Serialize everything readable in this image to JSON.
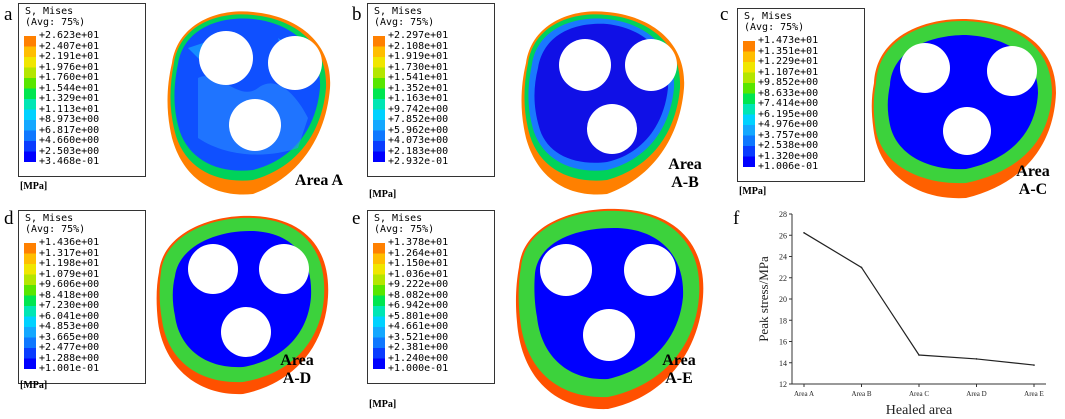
{
  "colors": {
    "scale": [
      "#0000ff",
      "#0a3cff",
      "#0f78ff",
      "#14a8ff",
      "#00d2ff",
      "#00e6b4",
      "#00e650",
      "#58e600",
      "#b4e600",
      "#f0e600",
      "#ffbe00",
      "#ff8000",
      "#ff2000"
    ],
    "model_blue": "#1a1ae6",
    "ring_green": "#2ecc40"
  },
  "legend_title": [
    "S, Mises",
    "(Avg: 75%)"
  ],
  "unit": "[MPa]",
  "panels": [
    {
      "label": "a",
      "area": [
        "Area A"
      ],
      "values": [
        "+2.623e+01",
        "+2.407e+01",
        "+2.191e+01",
        "+1.976e+01",
        "+1.760e+01",
        "+1.544e+01",
        "+1.329e+01",
        "+1.113e+01",
        "+8.973e+00",
        "+6.817e+00",
        "+4.660e+00",
        "+2.503e+00",
        "+3.468e-01"
      ]
    },
    {
      "label": "b",
      "area": [
        "Area",
        "A-B"
      ],
      "values": [
        "+2.297e+01",
        "+2.108e+01",
        "+1.919e+01",
        "+1.730e+01",
        "+1.541e+01",
        "+1.352e+01",
        "+1.163e+01",
        "+9.742e+00",
        "+7.852e+00",
        "+5.962e+00",
        "+4.073e+00",
        "+2.183e+00",
        "+2.932e-01"
      ]
    },
    {
      "label": "c",
      "area": [
        "Area",
        "A-C"
      ],
      "values": [
        "+1.473e+01",
        "+1.351e+01",
        "+1.229e+01",
        "+1.107e+01",
        "+9.852e+00",
        "+8.633e+00",
        "+7.414e+00",
        "+6.195e+00",
        "+4.976e+00",
        "+3.757e+00",
        "+2.538e+00",
        "+1.320e+00",
        "+1.006e-01"
      ]
    },
    {
      "label": "d",
      "area": [
        "Area",
        "A-D"
      ],
      "values": [
        "+1.436e+01",
        "+1.317e+01",
        "+1.198e+01",
        "+1.079e+01",
        "+9.606e+00",
        "+8.418e+00",
        "+7.230e+00",
        "+6.041e+00",
        "+4.853e+00",
        "+3.665e+00",
        "+2.477e+00",
        "+1.288e+00",
        "+1.001e-01"
      ]
    },
    {
      "label": "e",
      "area": [
        "Area",
        "A-E"
      ],
      "values": [
        "+1.378e+01",
        "+1.264e+01",
        "+1.150e+01",
        "+1.036e+01",
        "+9.222e+00",
        "+8.082e+00",
        "+6.942e+00",
        "+5.801e+00",
        "+4.661e+00",
        "+3.521e+00",
        "+2.381e+00",
        "+1.240e+00",
        "+1.000e-01"
      ]
    }
  ],
  "panel_f_label": "f",
  "chart_data": {
    "type": "line",
    "categories": [
      "Area A",
      "Area B",
      "Area C",
      "Area D",
      "Area E"
    ],
    "values": [
      26.23,
      22.97,
      14.73,
      14.36,
      13.78
    ],
    "xlabel": "Healed area",
    "ylabel": "Peak stress/MPa",
    "ylim": [
      12,
      28
    ],
    "yticks": [
      12,
      14,
      16,
      18,
      20,
      22,
      24,
      26,
      28
    ],
    "grid": false
  }
}
